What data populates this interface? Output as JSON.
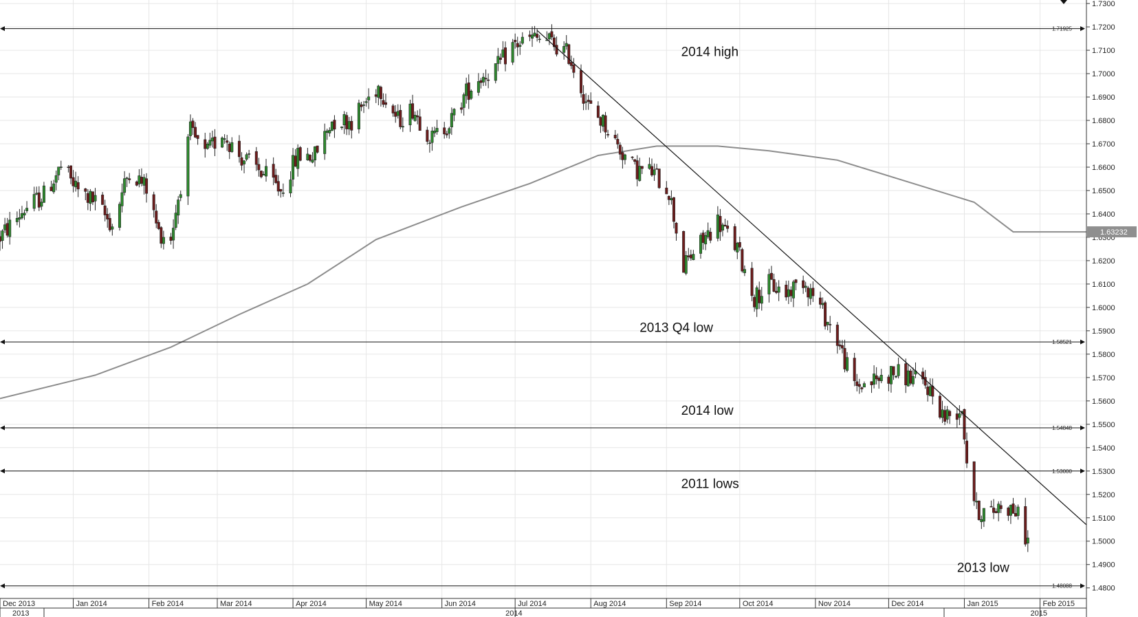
{
  "chart_data": {
    "type": "candlestick",
    "y_range": [
      1.4755,
      1.7315
    ],
    "y_ticks": [
      "1.7300",
      "1.7200",
      "1.7100",
      "1.7000",
      "1.6900",
      "1.6800",
      "1.6700",
      "1.6600",
      "1.6500",
      "1.6400",
      "1.6300",
      "1.6200",
      "1.6100",
      "1.6000",
      "1.5900",
      "1.5800",
      "1.5700",
      "1.5600",
      "1.5500",
      "1.5400",
      "1.5300",
      "1.5200",
      "1.5100",
      "1.5000",
      "1.4900",
      "1.4800"
    ],
    "x_range": [
      "2013-12-02",
      "2015-02-20"
    ],
    "months": [
      {
        "label": "Dec 2013",
        "date": "2013-12-01"
      },
      {
        "label": "Jan 2014",
        "date": "2014-01-01"
      },
      {
        "label": "Feb 2014",
        "date": "2014-02-01"
      },
      {
        "label": "Mar 2014",
        "date": "2014-03-01"
      },
      {
        "label": "Apr 2014",
        "date": "2014-04-01"
      },
      {
        "label": "May 2014",
        "date": "2014-05-01"
      },
      {
        "label": "Jun 2014",
        "date": "2014-06-01"
      },
      {
        "label": "Jul 2014",
        "date": "2014-07-01"
      },
      {
        "label": "Aug 2014",
        "date": "2014-08-01"
      },
      {
        "label": "Sep 2014",
        "date": "2014-09-01"
      },
      {
        "label": "Oct 2014",
        "date": "2014-10-01"
      },
      {
        "label": "Nov 2014",
        "date": "2014-11-01"
      },
      {
        "label": "Dec 2014",
        "date": "2014-12-01"
      },
      {
        "label": "Jan 2015",
        "date": "2015-01-01"
      },
      {
        "label": "Feb 2015",
        "date": "2015-02-01"
      }
    ],
    "years": [
      {
        "label": "2013",
        "date": "2013-12-01"
      },
      {
        "label": "2014",
        "date": "2014-07-01"
      },
      {
        "label": "2015",
        "date": "2015-02-01"
      }
    ],
    "price_path": [
      [
        "2013-12-02",
        1.63
      ],
      [
        "2013-12-12",
        1.642
      ],
      [
        "2013-12-20",
        1.648
      ],
      [
        "2013-12-27",
        1.66
      ],
      [
        "2014-01-03",
        1.65
      ],
      [
        "2014-01-10",
        1.645
      ],
      [
        "2014-01-17",
        1.635
      ],
      [
        "2014-01-24",
        1.659
      ],
      [
        "2014-01-31",
        1.651
      ],
      [
        "2014-02-05",
        1.632
      ],
      [
        "2014-02-10",
        1.63
      ],
      [
        "2014-02-18",
        1.675
      ],
      [
        "2014-02-24",
        1.665
      ],
      [
        "2014-03-03",
        1.675
      ],
      [
        "2014-03-10",
        1.665
      ],
      [
        "2014-03-19",
        1.658
      ],
      [
        "2014-03-27",
        1.65
      ],
      [
        "2014-04-03",
        1.665
      ],
      [
        "2014-04-10",
        1.665
      ],
      [
        "2014-04-17",
        1.68
      ],
      [
        "2014-04-25",
        1.68
      ],
      [
        "2014-05-06",
        1.695
      ],
      [
        "2014-05-14",
        1.68
      ],
      [
        "2014-05-20",
        1.685
      ],
      [
        "2014-05-28",
        1.672
      ],
      [
        "2014-06-05",
        1.68
      ],
      [
        "2014-06-11",
        1.692
      ],
      [
        "2014-06-16",
        1.698
      ],
      [
        "2014-06-24",
        1.703
      ],
      [
        "2014-06-30",
        1.712
      ],
      [
        "2014-07-08",
        1.715
      ],
      [
        "2014-07-15",
        1.714
      ],
      [
        "2014-07-23",
        1.708
      ],
      [
        "2014-07-31",
        1.686
      ],
      [
        "2014-08-07",
        1.678
      ],
      [
        "2014-08-12",
        1.669
      ],
      [
        "2014-08-19",
        1.659
      ],
      [
        "2014-08-26",
        1.658
      ],
      [
        "2014-09-02",
        1.65
      ],
      [
        "2014-09-08",
        1.617
      ],
      [
        "2014-09-11",
        1.622
      ],
      [
        "2014-09-17",
        1.63
      ],
      [
        "2014-09-22",
        1.637
      ],
      [
        "2014-09-30",
        1.625
      ],
      [
        "2014-10-07",
        1.604
      ],
      [
        "2014-10-13",
        1.61
      ],
      [
        "2014-10-20",
        1.606
      ],
      [
        "2014-10-27",
        1.612
      ],
      [
        "2014-11-03",
        1.6
      ],
      [
        "2014-11-10",
        1.586
      ],
      [
        "2014-11-17",
        1.566
      ],
      [
        "2014-11-26",
        1.569
      ],
      [
        "2014-12-03",
        1.572
      ],
      [
        "2014-12-10",
        1.57
      ],
      [
        "2014-12-17",
        1.566
      ],
      [
        "2014-12-24",
        1.553
      ],
      [
        "2014-12-31",
        1.557
      ],
      [
        "2015-01-02",
        1.535
      ],
      [
        "2015-01-06",
        1.513
      ],
      [
        "2015-01-12",
        1.512
      ],
      [
        "2015-01-16",
        1.516
      ],
      [
        "2015-01-22",
        1.513
      ],
      [
        "2015-01-27",
        1.5
      ]
    ],
    "ma_path": [
      [
        "2013-12-02",
        1.561
      ],
      [
        "2014-01-10",
        1.571
      ],
      [
        "2014-02-10",
        1.583
      ],
      [
        "2014-03-10",
        1.597
      ],
      [
        "2014-04-07",
        1.61
      ],
      [
        "2014-05-05",
        1.629
      ],
      [
        "2014-06-09",
        1.643
      ],
      [
        "2014-07-07",
        1.653
      ],
      [
        "2014-08-04",
        1.665
      ],
      [
        "2014-08-28",
        1.669
      ],
      [
        "2014-09-22",
        1.669
      ],
      [
        "2014-10-13",
        1.667
      ],
      [
        "2014-11-10",
        1.663
      ],
      [
        "2014-12-08",
        1.654
      ],
      [
        "2015-01-05",
        1.645
      ],
      [
        "2015-01-21",
        1.6323
      ],
      [
        "2015-02-20",
        1.6323
      ]
    ],
    "ma_last_value": "1.63232",
    "trendline": {
      "from": [
        "2014-07-10",
        1.7185
      ],
      "to": [
        "2015-02-20",
        1.507
      ]
    },
    "horizontal_levels": [
      {
        "value": 1.71925,
        "label": "1.71925",
        "annotation": "2014 high",
        "annotation_date": "2014-09-07",
        "annotation_y": 1.7075
      },
      {
        "value": 1.58521,
        "label": "1.58521",
        "annotation": "2013 Q4 low",
        "annotation_date": "2014-08-21",
        "annotation_y": 1.5895
      },
      {
        "value": 1.54848,
        "label": "1.54848",
        "annotation": "2014 low",
        "annotation_date": "2014-09-07",
        "annotation_y": 1.554
      },
      {
        "value": 1.53,
        "label": "1.53000",
        "annotation": "2011 lows",
        "annotation_date": "2014-09-07",
        "annotation_y": 1.5228
      },
      {
        "value": 1.48088,
        "label": "1.48088",
        "annotation": "2013 low",
        "annotation_date": "2014-12-29",
        "annotation_y": 1.4868
      }
    ],
    "colors": {
      "up": "#2e8b2e",
      "down": "#6e1c1c",
      "ma": "#8c8c8c",
      "grid": "#e6e6e6",
      "lines": "#111111"
    }
  }
}
